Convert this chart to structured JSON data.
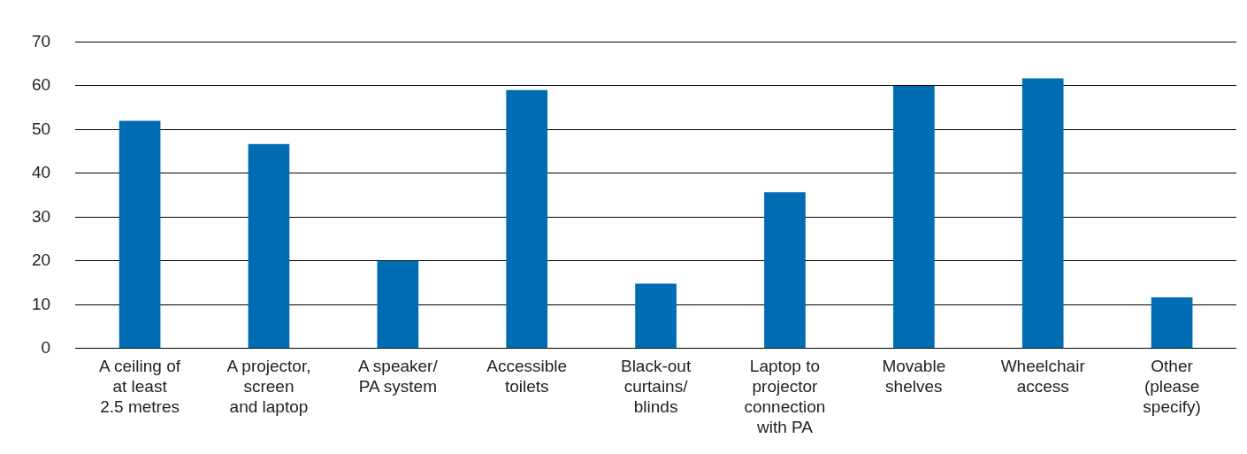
{
  "chart_data": {
    "type": "bar",
    "categories": [
      "A ceiling of\nat least\n2.5 metres",
      "A projector,\nscreen\nand laptop",
      "A speaker/\nPA system",
      "Accessible\ntoilets",
      "Black-out\ncurtains/\nblinds",
      "Laptop to\nprojector\nconnection\nwith PA",
      "Movable\nshelves",
      "Wheelchair\naccess",
      "Other\n(please\nspecify)"
    ],
    "values": [
      52,
      46.7,
      20,
      59,
      14.8,
      35.7,
      60,
      61.7,
      11.7
    ],
    "color": "#006cb2",
    "ylim": [
      0,
      70
    ],
    "yticks": [
      0,
      10,
      20,
      30,
      40,
      50,
      60,
      70
    ],
    "grid": "y",
    "legend": false
  }
}
